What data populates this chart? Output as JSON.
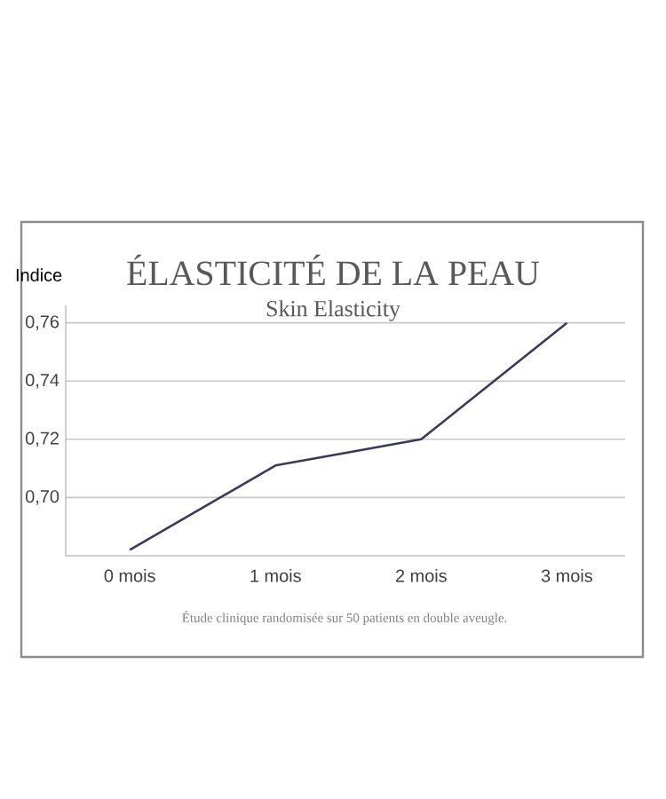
{
  "chart_data": {
    "type": "line",
    "title": "ÉLASTICITÉ DE LA PEAU",
    "subtitle": "Skin Elasticity",
    "ylabel": "Indice",
    "categories": [
      "0 mois",
      "1 mois",
      "2 mois",
      "3 mois"
    ],
    "series": [
      {
        "color": "#3b3a5e",
        "values": [
          0.682,
          0.711,
          0.72,
          0.76
        ]
      }
    ],
    "ylim": [
      0.68,
      0.766
    ],
    "yticks": [
      {
        "value": 0.7,
        "label": "0,70"
      },
      {
        "value": 0.72,
        "label": "0,72"
      },
      {
        "value": 0.74,
        "label": "0,74"
      },
      {
        "value": 0.76,
        "label": "0,76"
      }
    ],
    "grid": "y",
    "marker": "none",
    "line_style": "solid",
    "annotations": [
      "Étude clinique randomisée sur 50 patients en double aveugle."
    ]
  }
}
